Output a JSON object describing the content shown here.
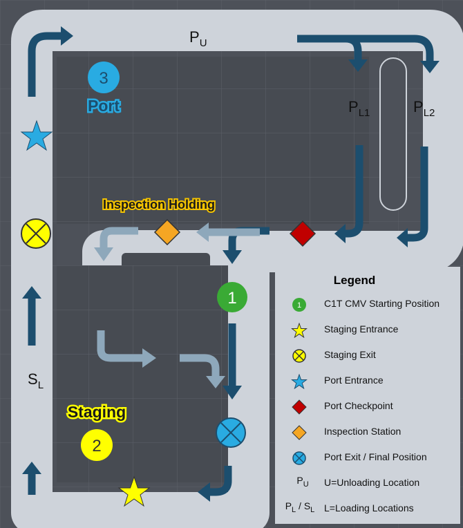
{
  "labels": {
    "pu_main": "P",
    "pu_sub": "U",
    "pl1_main": "P",
    "pl1_sub": "L1",
    "pl2_main": "P",
    "pl2_sub": "L2",
    "sl_main": "S",
    "sl_sub": "L",
    "port": "Port",
    "port_number": "3",
    "staging": "Staging",
    "staging_number": "2",
    "inspection_holding": "Inspection Holding",
    "start_number": "1"
  },
  "legend": {
    "title": "Legend",
    "items": [
      {
        "icon": "green-circle-icon",
        "symbol": "1",
        "text": "C1T CMV Starting Position"
      },
      {
        "icon": "yellow-star-icon",
        "text": "Staging Entrance"
      },
      {
        "icon": "yellow-x-circle-icon",
        "text": "Staging Exit"
      },
      {
        "icon": "blue-star-icon",
        "text": "Port Entrance"
      },
      {
        "icon": "red-diamond-icon",
        "text": "Port Checkpoint"
      },
      {
        "icon": "orange-diamond-icon",
        "text": "Inspection Station"
      },
      {
        "icon": "blue-x-circle-icon",
        "text": "Port Exit / Final Position"
      }
    ],
    "pu_row": {
      "sym_main": "P",
      "sym_sub": "U",
      "text": "U=Unloading Location"
    },
    "pl_row": {
      "sym_a": "P",
      "sub_a": "L",
      "sep": " / ",
      "sym_b": "S",
      "sub_b": "L",
      "text": "L=Loading Locations"
    }
  },
  "colors": {
    "background": "#4d5159",
    "road": "#ced3da",
    "lot": "#474b52",
    "arrow_dark": "#1c4e6e",
    "arrow_light": "#8ea8bb",
    "green": "#3aaa35",
    "yellow": "#ffff00",
    "blue": "#29abe2",
    "red": "#c00000",
    "orange": "#f5a623"
  }
}
